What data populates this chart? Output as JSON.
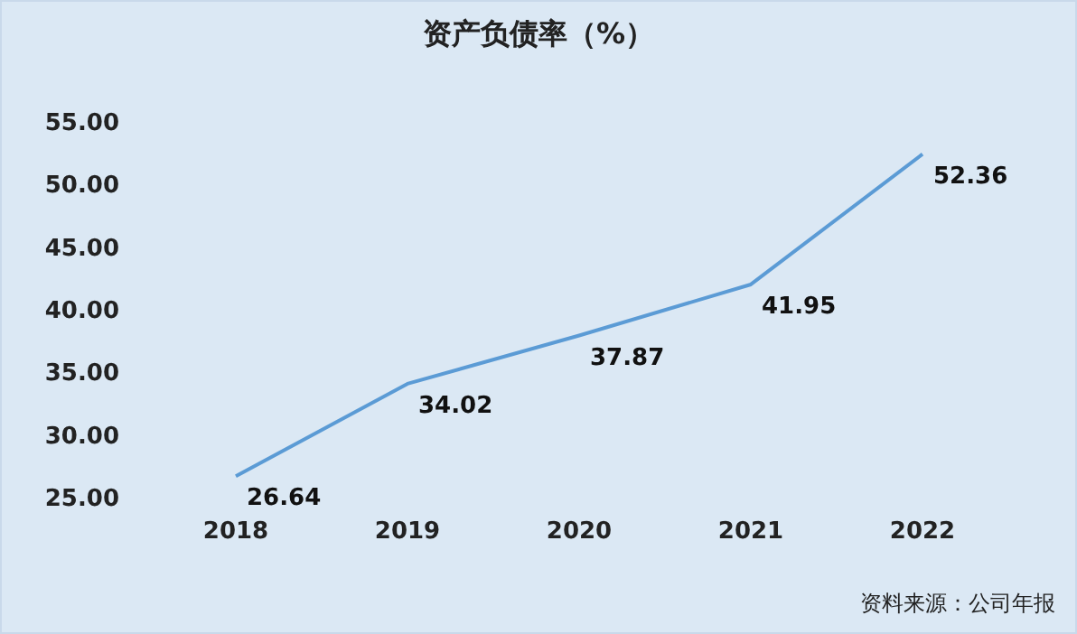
{
  "chart_data": {
    "type": "line",
    "title": "资产负债率（%）",
    "categories": [
      "2018",
      "2019",
      "2020",
      "2021",
      "2022"
    ],
    "values": [
      26.64,
      34.02,
      37.87,
      41.95,
      52.36
    ],
    "color": "#5b9bd5",
    "ylim": [
      25,
      55
    ],
    "yticks": [
      {
        "value": 25,
        "label": "25.00"
      },
      {
        "value": 30,
        "label": "30.00"
      },
      {
        "value": 35,
        "label": "35.00"
      },
      {
        "value": 40,
        "label": "40.00"
      },
      {
        "value": 45,
        "label": "45.00"
      },
      {
        "value": 50,
        "label": "50.00"
      },
      {
        "value": 55,
        "label": "55.00"
      }
    ],
    "data_labels": true,
    "annotations": [
      "资料来源：公司年报"
    ]
  }
}
